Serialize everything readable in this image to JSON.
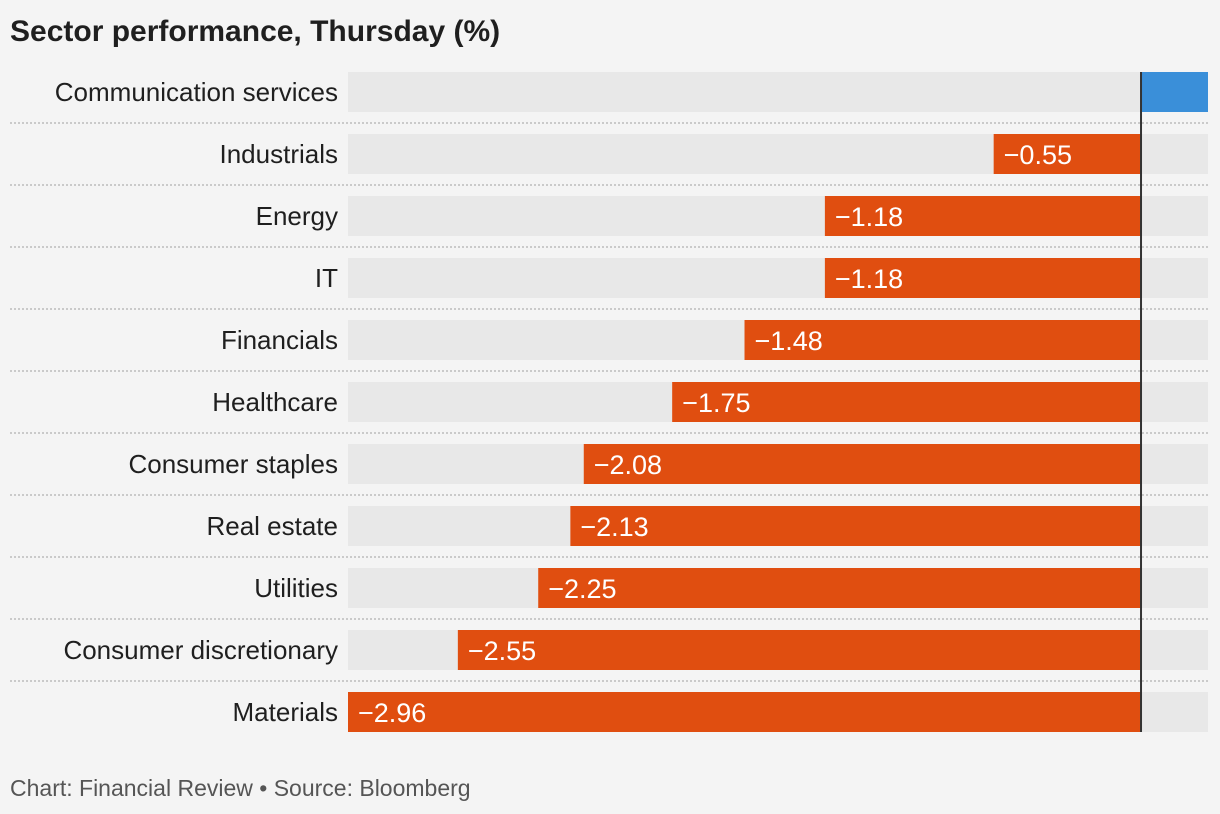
{
  "colors": {
    "negative": "#e04e10",
    "positive": "#3a8fd9",
    "track": "#e8e8e8",
    "zero_line": "#333333",
    "separator": "#bbbbbb",
    "label_text": "#1f1f1f",
    "value_text": "#ffffff"
  },
  "footer": {
    "text": "Chart: Financial Review • Source: Bloomberg"
  },
  "chart_data": {
    "type": "bar",
    "orientation": "horizontal",
    "title": "Sector performance, Thursday (%)",
    "xlabel": "",
    "ylabel": "",
    "xlim": [
      -2.96,
      0.25
    ],
    "grid": false,
    "legend": "none",
    "categories": [
      "Communication services",
      "Industrials",
      "Energy",
      "IT",
      "Financials",
      "Healthcare",
      "Consumer staples",
      "Real estate",
      "Utilities",
      "Consumer discretionary",
      "Materials"
    ],
    "values": [
      0.25,
      -0.55,
      -1.18,
      -1.18,
      -1.48,
      -1.75,
      -2.08,
      -2.13,
      -2.25,
      -2.55,
      -2.96
    ],
    "value_labels": [
      "",
      "−0.55",
      "−1.18",
      "−1.18",
      "−1.48",
      "−1.75",
      "−2.08",
      "−2.13",
      "−2.25",
      "−2.55",
      "−2.96"
    ]
  }
}
